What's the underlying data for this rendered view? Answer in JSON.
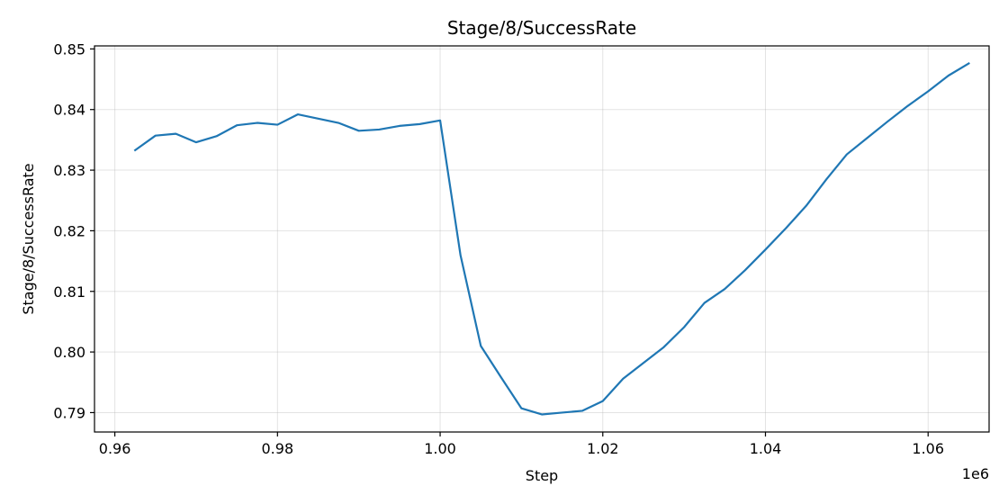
{
  "chart_data": {
    "type": "line",
    "title": "Stage/8/SuccessRate",
    "xlabel": "Step",
    "ylabel": "Stage/8/SuccessRate",
    "x_offset_label": "1e6",
    "xlim": [
      0.9575,
      1.0675
    ],
    "ylim": [
      0.7868,
      0.8505
    ],
    "xticks": [
      0.96,
      0.98,
      1.0,
      1.02,
      1.04,
      1.06
    ],
    "xtick_labels": [
      "0.96",
      "0.98",
      "1.00",
      "1.02",
      "1.04",
      "1.06"
    ],
    "yticks": [
      0.79,
      0.8,
      0.81,
      0.82,
      0.83,
      0.84,
      0.85
    ],
    "ytick_labels": [
      "0.79",
      "0.80",
      "0.81",
      "0.82",
      "0.83",
      "0.84",
      "0.85"
    ],
    "grid": true,
    "series": [
      {
        "color": "#1f77b4",
        "x": [
          0.9625,
          0.965,
          0.9675,
          0.97,
          0.9725,
          0.975,
          0.9775,
          0.98,
          0.9825,
          0.985,
          0.9875,
          0.99,
          0.9925,
          0.995,
          0.9975,
          1.0,
          1.0025,
          1.005,
          1.0075,
          1.01,
          1.0125,
          1.015,
          1.0175,
          1.02,
          1.0225,
          1.025,
          1.0275,
          1.03,
          1.0325,
          1.035,
          1.0375,
          1.04,
          1.0425,
          1.045,
          1.0475,
          1.05,
          1.0525,
          1.055,
          1.0575,
          1.06,
          1.0625,
          1.065
        ],
        "y": [
          0.8333,
          0.8357,
          0.836,
          0.8346,
          0.8356,
          0.8374,
          0.8378,
          0.8375,
          0.8392,
          0.8385,
          0.8378,
          0.8365,
          0.8367,
          0.8373,
          0.8376,
          0.8382,
          0.816,
          0.801,
          0.7958,
          0.7907,
          0.7897,
          0.79,
          0.7903,
          0.7919,
          0.7956,
          0.7982,
          0.8008,
          0.8041,
          0.8081,
          0.8104,
          0.8135,
          0.8169,
          0.8204,
          0.8241,
          0.8285,
          0.8326,
          0.8353,
          0.838,
          0.8406,
          0.843,
          0.8456,
          0.8476
        ]
      }
    ]
  }
}
